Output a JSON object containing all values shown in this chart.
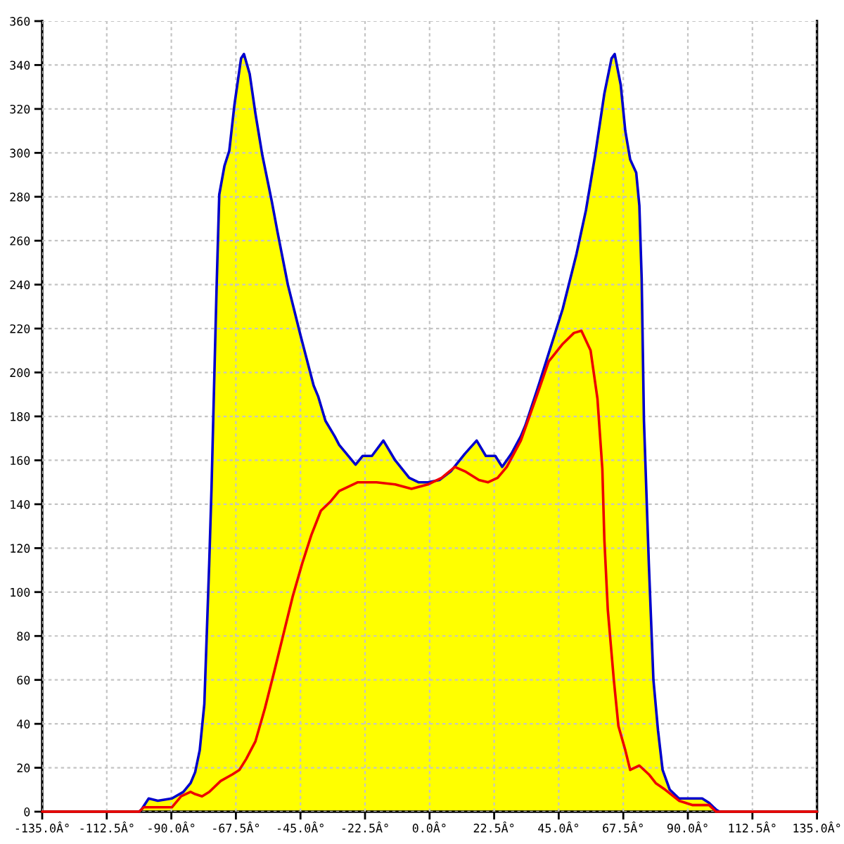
{
  "chart_data": {
    "type": "line",
    "xlim": [
      -135,
      135
    ],
    "xticks": [
      {
        "value": -135,
        "label": "-135.0Â°"
      },
      {
        "value": -112.5,
        "label": "-112.5Â°"
      },
      {
        "value": -90,
        "label": "-90.0Â°"
      },
      {
        "value": -67.5,
        "label": "-67.5Â°"
      },
      {
        "value": -45,
        "label": "-45.0Â°"
      },
      {
        "value": -22.5,
        "label": "-22.5Â°"
      },
      {
        "value": 0,
        "label": "0.0Â°"
      },
      {
        "value": 22.5,
        "label": "22.5Â°"
      },
      {
        "value": 45,
        "label": "45.0Â°"
      },
      {
        "value": 67.5,
        "label": "67.5Â°"
      },
      {
        "value": 90,
        "label": "90.0Â°"
      },
      {
        "value": 112.5,
        "label": "112.5Â°"
      },
      {
        "value": 135,
        "label": "135.0Â°"
      }
    ],
    "ylim": [
      0,
      360
    ],
    "yticks": [
      0,
      20,
      40,
      60,
      80,
      100,
      120,
      140,
      160,
      180,
      200,
      220,
      240,
      260,
      280,
      300,
      320,
      340,
      360
    ],
    "grid": true,
    "series": [
      {
        "type": "area",
        "color": "#ffff00",
        "x": [
          -135,
          -101.2,
          -100.4,
          -97.9,
          -94.7,
          -89.8,
          -85.8,
          -83.3,
          -81.7,
          -80.1,
          -78.5,
          -77.7,
          -76.8,
          -76.0,
          -75.1,
          -74.2,
          -73.3,
          -71.5,
          -69.8,
          -68.0,
          -65.7,
          -64.7,
          -62.7,
          -60.7,
          -58.3,
          -55.0,
          -53.0,
          -49.4,
          -45.0,
          -40.4,
          -38.8,
          -36.3,
          -33.1,
          -31.5,
          -25.8,
          -23.3,
          -20.1,
          -16.1,
          -12.0,
          -7.1,
          -3.9,
          -0.6,
          3.4,
          7.4,
          12.3,
          16.4,
          19.6,
          22.9,
          25.3,
          28.5,
          31.8,
          33.4,
          38.2,
          46.4,
          51.2,
          54.5,
          57.7,
          60.9,
          63.4,
          64.5,
          66.6,
          68.2,
          69.9,
          72.0,
          73.1,
          73.9,
          74.7,
          76.4,
          78.0,
          79.6,
          81.2,
          83.7,
          86.9,
          91.7,
          95.0,
          97.4,
          99.8,
          101.0,
          135
        ],
        "values": [
          0,
          0,
          1,
          6,
          5,
          6,
          9,
          13,
          18,
          28,
          49,
          79,
          113,
          147,
          194,
          240,
          281,
          294,
          301,
          322,
          343,
          345,
          336,
          318,
          299,
          278,
          264,
          240,
          217,
          194,
          189,
          178,
          171,
          167,
          158,
          162,
          162,
          169,
          160,
          152,
          150,
          150,
          151,
          155,
          163,
          169,
          162,
          162,
          157,
          163,
          171,
          176,
          195,
          229,
          254,
          274,
          299,
          327,
          343,
          345,
          331,
          310,
          297,
          291,
          276,
          243,
          178,
          113,
          60,
          37,
          19,
          10,
          6,
          6,
          6,
          4,
          1,
          0,
          0
        ]
      },
      {
        "color": "#0000cc",
        "x": [
          -101.2,
          -100.4,
          -97.9,
          -94.7,
          -89.8,
          -85.8,
          -83.3,
          -81.7,
          -80.1,
          -78.5,
          -77.7,
          -76.8,
          -76.0,
          -75.1,
          -74.2,
          -73.3,
          -71.5,
          -69.8,
          -68.0,
          -65.7,
          -64.7,
          -62.7,
          -60.7,
          -58.3,
          -55.0,
          -53.0,
          -49.4,
          -45.0,
          -40.4,
          -38.8,
          -36.3,
          -33.1,
          -31.5,
          -25.8,
          -23.3,
          -20.1,
          -16.1,
          -12.0,
          -7.1,
          -3.9,
          -0.6,
          3.4,
          7.4,
          12.3,
          16.4,
          19.6,
          22.9,
          25.3,
          28.5,
          31.8,
          33.4,
          38.2,
          46.4,
          51.2,
          54.5,
          57.7,
          60.9,
          63.4,
          64.5,
          66.6,
          68.2,
          69.9,
          72.0,
          73.1,
          73.9,
          74.7,
          76.4,
          78.0,
          79.6,
          81.2,
          83.7,
          86.9,
          91.7,
          95.0,
          97.4,
          99.8,
          101.0
        ],
        "values": [
          0,
          1,
          6,
          5,
          6,
          9,
          13,
          18,
          28,
          49,
          79,
          113,
          147,
          194,
          240,
          281,
          294,
          301,
          322,
          343,
          345,
          336,
          318,
          299,
          278,
          264,
          240,
          217,
          194,
          189,
          178,
          171,
          167,
          158,
          162,
          162,
          169,
          160,
          152,
          150,
          150,
          151,
          155,
          163,
          169,
          162,
          162,
          157,
          163,
          171,
          176,
          195,
          229,
          254,
          274,
          299,
          327,
          343,
          345,
          331,
          310,
          297,
          291,
          276,
          243,
          178,
          113,
          60,
          37,
          19,
          10,
          6,
          6,
          6,
          4,
          1,
          0
        ]
      },
      {
        "color": "#ee0000",
        "x": [
          -135,
          -101.2,
          -99.6,
          -89.8,
          -86.6,
          -83.3,
          -81.7,
          -79.3,
          -76.8,
          -72.8,
          -68.7,
          -66.3,
          -63.9,
          -60.7,
          -57.4,
          -54.1,
          -50.9,
          -47.7,
          -44.4,
          -41.2,
          -37.9,
          -34.7,
          -31.5,
          -25.0,
          -18.5,
          -12.0,
          -6.3,
          -0.6,
          4.2,
          8.8,
          12.3,
          17.2,
          20.4,
          23.7,
          26.9,
          31.8,
          37.5,
          41.5,
          46.4,
          50.3,
          52.9,
          56.1,
          58.5,
          60.2,
          60.9,
          62.1,
          64.2,
          65.8,
          68.2,
          69.9,
          73.1,
          76.4,
          78.8,
          82.1,
          86.9,
          91.7,
          97.4,
          99.8,
          135
        ],
        "values": [
          0,
          0,
          2,
          2,
          7,
          9,
          8,
          7,
          9,
          14,
          17,
          19,
          24,
          32,
          47,
          64,
          81,
          98,
          113,
          126,
          137,
          141,
          146,
          150,
          150,
          149,
          147,
          149,
          152,
          157,
          155,
          151,
          150,
          152,
          157,
          169,
          190,
          205,
          213,
          218,
          219,
          210,
          188,
          156,
          124,
          92,
          60,
          39,
          28,
          19,
          21,
          17,
          13,
          10,
          5,
          3,
          3,
          0,
          0
        ]
      }
    ]
  }
}
